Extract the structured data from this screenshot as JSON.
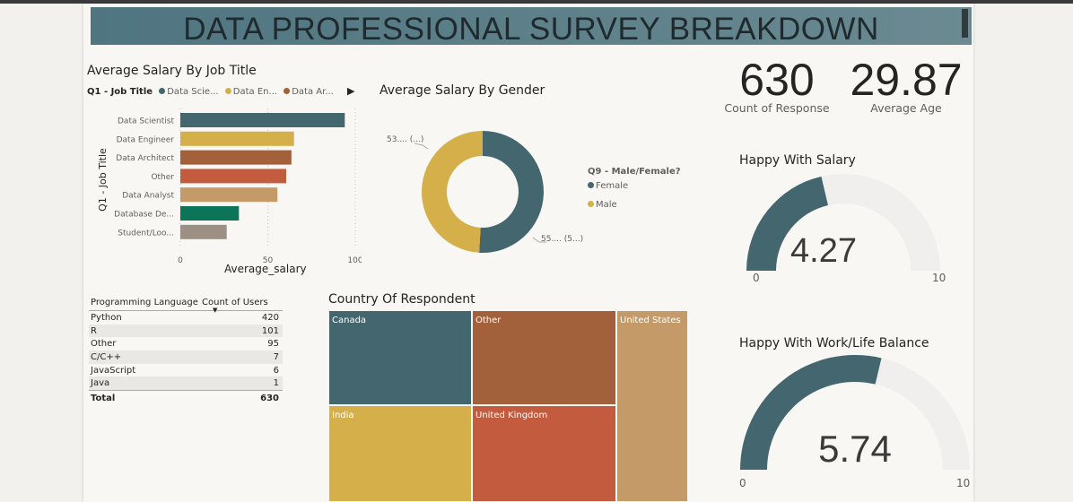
{
  "header": {
    "title": "DATA PROFESSIONAL SURVEY BREAKDOWN"
  },
  "colors": {
    "teal": "#43666f",
    "gold": "#d5b04a",
    "rust": "#a2613a",
    "coral": "#c35b3e",
    "tan": "#c49a68",
    "green": "#0c7558",
    "taupe": "#9c8f84",
    "gauge_bg": "#f0efed"
  },
  "bar_chart": {
    "title": "Average Salary By Job Title",
    "legend": {
      "field": "Q1 - Job Title",
      "items": [
        "Data Scie...",
        "Data En...",
        "Data Ar..."
      ],
      "more_icon": "▶"
    },
    "ylabel": "Q1 - Job Title",
    "xlabel": "Average_salary"
  },
  "gender_chart": {
    "title": "Average Salary By Gender",
    "legend_title": "Q9 - Male/Female?",
    "legend_items": [
      "Female",
      "Male"
    ],
    "label_male": "53.... (...)",
    "label_female": "55.... (5...)"
  },
  "kpis": [
    {
      "value": "630",
      "label": "Count of Response"
    },
    {
      "value": "29.87",
      "label": "Average Age"
    }
  ],
  "gauges": [
    {
      "title": "Happy With Salary",
      "value_text": "4.27",
      "min": "0",
      "max": "10"
    },
    {
      "title": "Happy With Work/Life Balance",
      "value_text": "5.74",
      "min": "0",
      "max": "10"
    }
  ],
  "table": {
    "col1": "Programming Language",
    "col2": "Count of Users",
    "sort_icon": "▼",
    "rows": [
      {
        "lang": "Python",
        "count": "420"
      },
      {
        "lang": "R",
        "count": "101"
      },
      {
        "lang": "Other",
        "count": "95"
      },
      {
        "lang": "C/C++",
        "count": "7"
      },
      {
        "lang": "JavaScript",
        "count": "6"
      },
      {
        "lang": "Java",
        "count": "1"
      }
    ],
    "total_label": "Total",
    "total_value": "630"
  },
  "treemap": {
    "title": "Country Of Respondent",
    "cells": [
      "Canada",
      "Other",
      "United States",
      "India",
      "United Kingdom"
    ]
  },
  "chart_data": [
    {
      "type": "bar",
      "title": "Average Salary By Job Title",
      "xlabel": "Average_salary",
      "ylabel": "Q1 - Job Title",
      "categories": [
        "Data Scientist",
        "Data Engineer",
        "Data Architect",
        "Other",
        "Data Analyst",
        "Database De...",
        "Student/Loo..."
      ],
      "values": [
        94,
        65,
        63.5,
        60.5,
        55.5,
        33.5,
        26.5
      ],
      "xticks": [
        "0",
        "50",
        "100"
      ],
      "xlim": [
        0,
        100
      ],
      "bar_colors": [
        "#43666f",
        "#d5b04a",
        "#a2613a",
        "#c35b3e",
        "#c49a68",
        "#0c7558",
        "#9c8f84"
      ]
    },
    {
      "type": "pie",
      "title": "Average Salary By Gender",
      "series": [
        {
          "name": "Female",
          "value": 55,
          "color": "#43666f"
        },
        {
          "name": "Male",
          "value": 53,
          "color": "#d5b04a"
        }
      ]
    },
    {
      "type": "heatmap",
      "title": "Country Of Respondent",
      "series": [
        {
          "name": "Canada",
          "color": "#43666f"
        },
        {
          "name": "Other",
          "color": "#a2613a"
        },
        {
          "name": "United States",
          "color": "#c49a68"
        },
        {
          "name": "India",
          "color": "#d5b04a"
        },
        {
          "name": "United Kingdom",
          "color": "#c35b3e"
        }
      ]
    },
    {
      "type": "gauge",
      "title": "Happy With Salary",
      "value": 4.27,
      "min": 0,
      "max": 10
    },
    {
      "type": "gauge",
      "title": "Happy With Work/Life Balance",
      "value": 5.74,
      "min": 0,
      "max": 10
    }
  ]
}
